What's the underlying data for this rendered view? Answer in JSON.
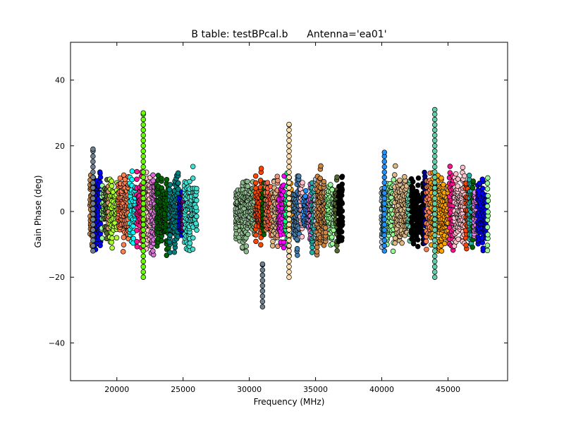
{
  "chart_data": {
    "type": "scatter",
    "title": "B table: testBPcal.b      Antenna='ea01'",
    "xlabel": "Frequency (MHz)",
    "ylabel": "Gain Phase (deg)",
    "xlim": [
      16500,
      49500
    ],
    "ylim": [
      -51.5,
      51.5
    ],
    "xticks": [
      20000,
      25000,
      30000,
      35000,
      40000,
      45000
    ],
    "yticks": [
      40,
      20,
      0,
      -20,
      -40
    ],
    "ytick_labels": [
      "40",
      "20",
      "0",
      "−20",
      "−40"
    ],
    "grid": false,
    "frequency_bands_mhz": [
      [
        18000,
        26000
      ],
      [
        29000,
        37000
      ],
      [
        40000,
        48000
      ]
    ],
    "typical_phase_range_deg": [
      -12,
      12
    ],
    "outliers": [
      {
        "x": 22000,
        "y_min": -20,
        "y_max": 30,
        "color": "#66ff00"
      },
      {
        "x": 31000,
        "y_min": -29,
        "y_max": -16,
        "color": "#708090"
      },
      {
        "x": 33000,
        "y_min": -20,
        "y_max": 26.5,
        "color": "#ffdead"
      },
      {
        "x": 44000,
        "y_min": -20,
        "y_max": 31,
        "color": "#66cdaa"
      },
      {
        "x": 18200,
        "y_min": -12,
        "y_max": 19,
        "color": "#708090"
      },
      {
        "x": 40200,
        "y_min": -12,
        "y_max": 18,
        "color": "#1e90ff"
      }
    ],
    "series_colors": [
      "#000080",
      "#ff00ff",
      "#00ff7f",
      "#ff7f50",
      "#8b0000",
      "#00ffff",
      "#ffa500",
      "#9400d3",
      "#7fff00",
      "#ff1493",
      "#4682b4",
      "#d2691e",
      "#2e8b57",
      "#ffc0cb",
      "#1e90ff",
      "#8fbc8f",
      "#ff4500",
      "#da70d6",
      "#20b2aa",
      "#f4a460",
      "#006400",
      "#ee82ee",
      "#b0c4de",
      "#cd853f",
      "#008080",
      "#0000ff",
      "#ff6347",
      "#98fb98",
      "#800080",
      "#deb887",
      "#40e0d0",
      "#556b2f",
      "#66cdaa",
      "#e9967a",
      "#000000",
      "#adff2f"
    ]
  }
}
